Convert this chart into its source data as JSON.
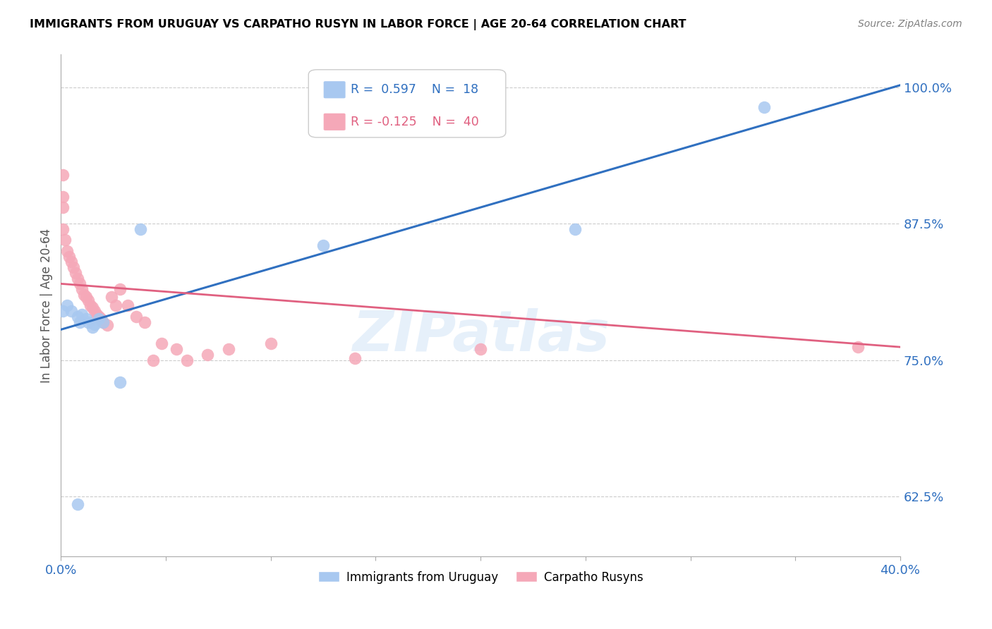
{
  "title": "IMMIGRANTS FROM URUGUAY VS CARPATHO RUSYN IN LABOR FORCE | AGE 20-64 CORRELATION CHART",
  "source": "Source: ZipAtlas.com",
  "ylabel": "In Labor Force | Age 20-64",
  "xlim": [
    0.0,
    0.4
  ],
  "ylim": [
    0.57,
    1.03
  ],
  "yticks": [
    0.625,
    0.75,
    0.875,
    1.0
  ],
  "ytick_labels": [
    "62.5%",
    "75.0%",
    "87.5%",
    "100.0%"
  ],
  "xticks": [
    0.0,
    0.05,
    0.1,
    0.15,
    0.2,
    0.25,
    0.3,
    0.35,
    0.4
  ],
  "xtick_labels": [
    "0.0%",
    "",
    "",
    "",
    "",
    "",
    "",
    "",
    "40.0%"
  ],
  "uruguay_color": "#a8c8f0",
  "carpatho_color": "#f5a8b8",
  "uruguay_line_color": "#3070c0",
  "carpatho_line_color": "#e06080",
  "watermark": "ZIPatlas",
  "uruguay_x": [
    0.001,
    0.003,
    0.005,
    0.008,
    0.009,
    0.01,
    0.012,
    0.013,
    0.015,
    0.016,
    0.018,
    0.02,
    0.028,
    0.038,
    0.125,
    0.245,
    0.335,
    0.008
  ],
  "uruguay_y": [
    0.795,
    0.8,
    0.795,
    0.79,
    0.785,
    0.792,
    0.788,
    0.785,
    0.78,
    0.783,
    0.788,
    0.785,
    0.73,
    0.87,
    0.855,
    0.87,
    0.982,
    0.618
  ],
  "carpatho_x": [
    0.001,
    0.001,
    0.001,
    0.001,
    0.002,
    0.003,
    0.004,
    0.005,
    0.006,
    0.007,
    0.008,
    0.009,
    0.01,
    0.011,
    0.012,
    0.013,
    0.014,
    0.015,
    0.016,
    0.017,
    0.018,
    0.019,
    0.02,
    0.022,
    0.024,
    0.026,
    0.028,
    0.032,
    0.036,
    0.04,
    0.044,
    0.048,
    0.055,
    0.06,
    0.07,
    0.08,
    0.1,
    0.14,
    0.2,
    0.38
  ],
  "carpatho_y": [
    0.92,
    0.9,
    0.89,
    0.87,
    0.86,
    0.85,
    0.845,
    0.84,
    0.835,
    0.83,
    0.825,
    0.82,
    0.815,
    0.81,
    0.808,
    0.805,
    0.8,
    0.798,
    0.795,
    0.792,
    0.79,
    0.788,
    0.785,
    0.782,
    0.808,
    0.8,
    0.815,
    0.8,
    0.79,
    0.785,
    0.75,
    0.765,
    0.76,
    0.75,
    0.755,
    0.76,
    0.765,
    0.752,
    0.76,
    0.762
  ],
  "blue_line_x0": 0.0,
  "blue_line_y0": 0.778,
  "blue_line_x1": 0.4,
  "blue_line_y1": 1.002,
  "pink_line_x0": 0.0,
  "pink_line_y0": 0.82,
  "pink_line_x1": 0.4,
  "pink_line_y1": 0.762
}
